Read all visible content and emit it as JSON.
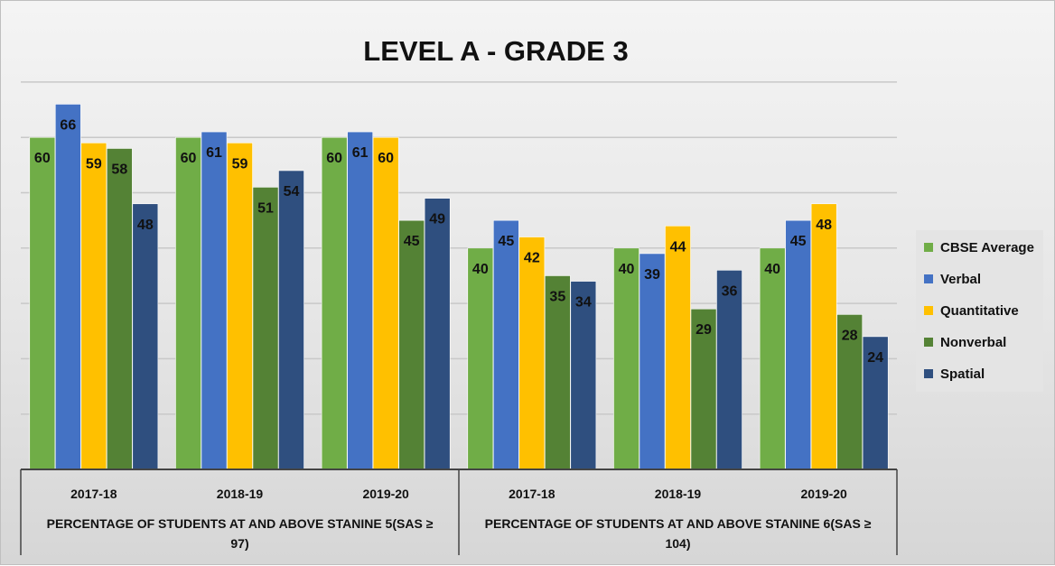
{
  "chart_data": {
    "type": "bar",
    "title": "LEVEL A - GRADE 3",
    "ylim": [
      0,
      70
    ],
    "grid": true,
    "legend_position": "right",
    "groups": [
      {
        "label": "PERCENTAGE OF STUDENTS AT AND ABOVE STANINE 5(SAS ≥ 97)",
        "label_lines": [
          "PERCENTAGE OF STUDENTS AT AND ABOVE STANINE 5(SAS ≥",
          "97)"
        ],
        "categories": [
          "2017-18",
          "2018-19",
          "2019-20"
        ]
      },
      {
        "label": "PERCENTAGE OF STUDENTS AT AND ABOVE STANINE 6(SAS ≥ 104)",
        "label_lines": [
          "PERCENTAGE OF STUDENTS AT AND ABOVE STANINE 6(SAS ≥",
          "104)"
        ],
        "categories": [
          "2017-18",
          "2018-19",
          "2019-20"
        ]
      }
    ],
    "series": [
      {
        "name": "CBSE Average",
        "color": "#70ad47",
        "values": [
          60,
          60,
          60,
          40,
          40,
          40
        ]
      },
      {
        "name": "Verbal",
        "color": "#4472c4",
        "values": [
          66,
          61,
          61,
          45,
          39,
          45
        ]
      },
      {
        "name": "Quantitative",
        "color": "#ffc000",
        "values": [
          59,
          59,
          60,
          42,
          44,
          48
        ]
      },
      {
        "name": "Nonverbal",
        "color": "#548235",
        "values": [
          58,
          51,
          45,
          35,
          29,
          28
        ]
      },
      {
        "name": "Spatial",
        "color": "#2f4f7f",
        "values": [
          48,
          54,
          49,
          34,
          36,
          24
        ]
      }
    ]
  }
}
